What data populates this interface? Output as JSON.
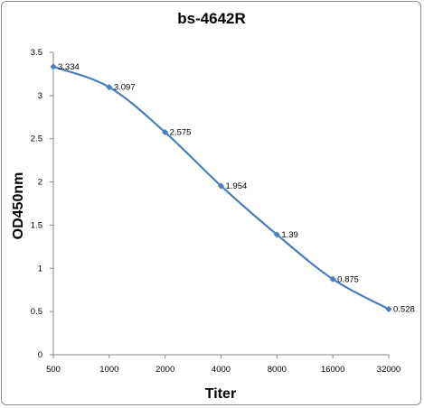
{
  "chart_data": {
    "type": "line",
    "title": "bs-4642R",
    "xlabel": "Titer",
    "ylabel": "OD450nm",
    "categories": [
      "500",
      "1000",
      "2000",
      "4000",
      "8000",
      "16000",
      "32000"
    ],
    "series": [
      {
        "values": [
          3.334,
          3.097,
          2.575,
          1.954,
          1.39,
          0.875,
          0.528
        ],
        "data_labels": [
          "3.334",
          "3.097",
          "2.575",
          "1.954",
          "1.39",
          "0.875",
          "0.528"
        ],
        "color": "#4a7ebb",
        "marker": "diamond",
        "smooth": true
      }
    ],
    "ylim": [
      0,
      3.5
    ],
    "yticks": [
      "0",
      "0.5",
      "1",
      "1.5",
      "2",
      "2.5",
      "3",
      "3.5"
    ],
    "ytick_values": [
      0,
      0.5,
      1,
      1.5,
      2,
      2.5,
      3,
      3.5
    ],
    "grid": false,
    "legend": "none"
  }
}
